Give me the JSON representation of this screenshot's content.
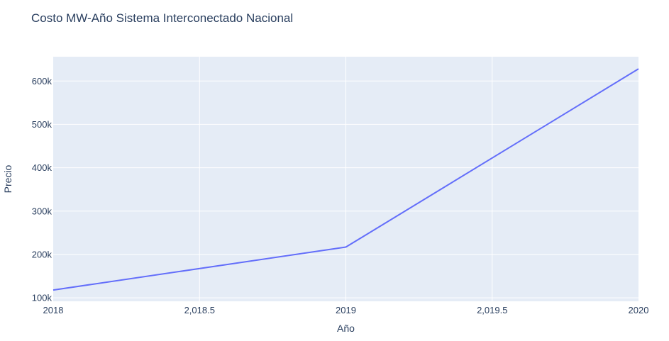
{
  "chart_data": {
    "type": "line",
    "title": "Costo MW-Año Sistema Interconectado Nacional",
    "xlabel": "Año",
    "ylabel": "Precio",
    "x": [
      2018,
      2019,
      2020
    ],
    "series": [
      {
        "values": [
          118000,
          217000,
          628000
        ]
      }
    ],
    "xlim": [
      2018,
      2020
    ],
    "ylim": [
      92000,
      656000
    ],
    "xticks": [
      {
        "value": 2018,
        "label": "2018"
      },
      {
        "value": 2018.5,
        "label": "2,018.5"
      },
      {
        "value": 2019,
        "label": "2019"
      },
      {
        "value": 2019.5,
        "label": "2,019.5"
      },
      {
        "value": 2020,
        "label": "2020"
      }
    ],
    "yticks": [
      {
        "value": 100000,
        "label": "100k"
      },
      {
        "value": 200000,
        "label": "200k"
      },
      {
        "value": 300000,
        "label": "300k"
      },
      {
        "value": 400000,
        "label": "400k"
      },
      {
        "value": 500000,
        "label": "500k"
      },
      {
        "value": 600000,
        "label": "600k"
      }
    ],
    "grid": true,
    "colors": {
      "line": "#636efa",
      "plot_bg": "#e5ecf6",
      "grid": "#ffffff",
      "text": "#2a3f5f"
    }
  }
}
